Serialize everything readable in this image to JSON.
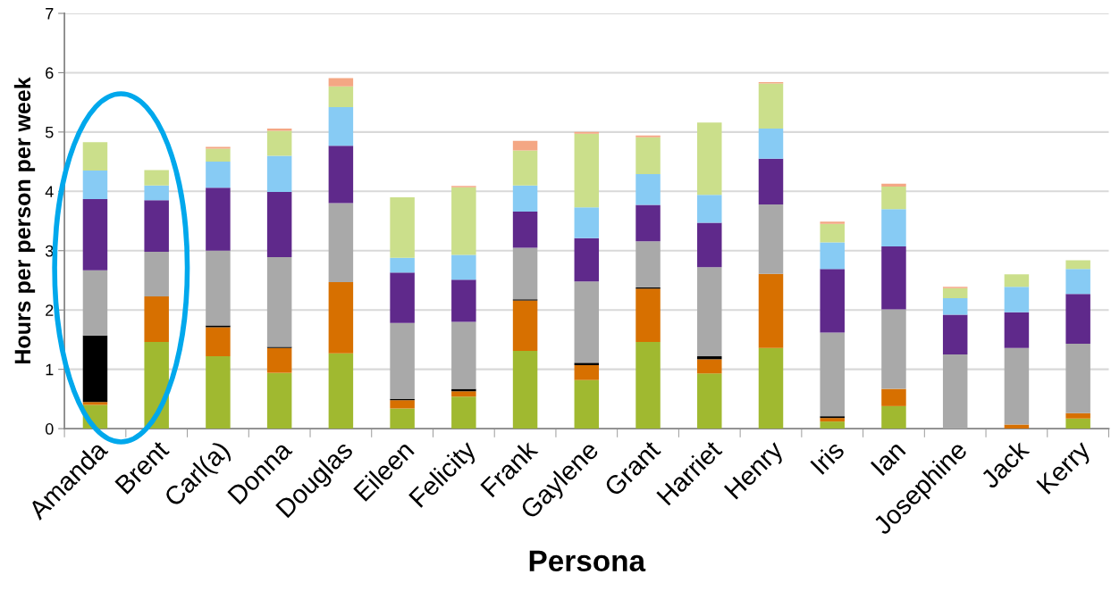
{
  "chart_data": {
    "type": "bar",
    "stacked": true,
    "xlabel": "Persona",
    "ylabel": "Hours per person per week",
    "categories": [
      "Amanda",
      "Brent",
      "Carl(a)",
      "Donna",
      "Douglas",
      "Eileen",
      "Felicity",
      "Frank",
      "Gaylene",
      "Grant",
      "Harriet",
      "Henry",
      "Iris",
      "Ian",
      "Josephine",
      "Jack",
      "Kerry"
    ],
    "series": [
      {
        "color": "#a0b930",
        "values": [
          0.4,
          1.46,
          1.22,
          0.94,
          1.27,
          0.34,
          0.54,
          1.31,
          0.82,
          1.46,
          0.93,
          1.36,
          0.12,
          0.38,
          0,
          0,
          0.17
        ]
      },
      {
        "color": "#d77000",
        "values": [
          0.05,
          0.77,
          0.49,
          0.42,
          1.2,
          0.14,
          0.09,
          0.85,
          0.25,
          0.9,
          0.24,
          1.25,
          0.06,
          0.29,
          0,
          0.07,
          0.09
        ]
      },
      {
        "color": "#000000",
        "values": [
          1.12,
          0,
          0.03,
          0.02,
          0,
          0.02,
          0.04,
          0.02,
          0.04,
          0.02,
          0.05,
          0,
          0.03,
          0,
          0,
          0,
          0
        ]
      },
      {
        "color": "#a9a9a9",
        "values": [
          1.1,
          0.75,
          1.26,
          1.51,
          1.33,
          1.28,
          1.13,
          0.87,
          1.37,
          0.78,
          1.5,
          1.17,
          1.41,
          1.34,
          1.25,
          1.29,
          1.17
        ]
      },
      {
        "color": "#5f298b",
        "values": [
          1.2,
          0.87,
          1.06,
          1.1,
          0.97,
          0.85,
          0.71,
          0.61,
          0.73,
          0.61,
          0.75,
          0.77,
          1.07,
          1.06,
          0.67,
          0.6,
          0.84
        ]
      },
      {
        "color": "#87cbf4",
        "values": [
          0.48,
          0.25,
          0.44,
          0.61,
          0.65,
          0.25,
          0.42,
          0.44,
          0.52,
          0.52,
          0.47,
          0.51,
          0.45,
          0.63,
          0.28,
          0.43,
          0.42
        ]
      },
      {
        "color": "#cbdf8b",
        "values": [
          0.48,
          0.26,
          0.22,
          0.42,
          0.35,
          1.02,
          1.14,
          0.59,
          1.24,
          0.62,
          1.22,
          0.76,
          0.31,
          0.38,
          0.17,
          0.21,
          0.15
        ]
      },
      {
        "color": "#f4a784",
        "values": [
          0,
          0,
          0.03,
          0.04,
          0.14,
          0,
          0.02,
          0.16,
          0.03,
          0.03,
          0,
          0.02,
          0.04,
          0.05,
          0.02,
          0,
          0
        ]
      }
    ],
    "ylim": [
      0,
      7
    ],
    "yticks": [
      0,
      1,
      2,
      3,
      4,
      5,
      6,
      7
    ],
    "grid": "y",
    "legend": false
  }
}
